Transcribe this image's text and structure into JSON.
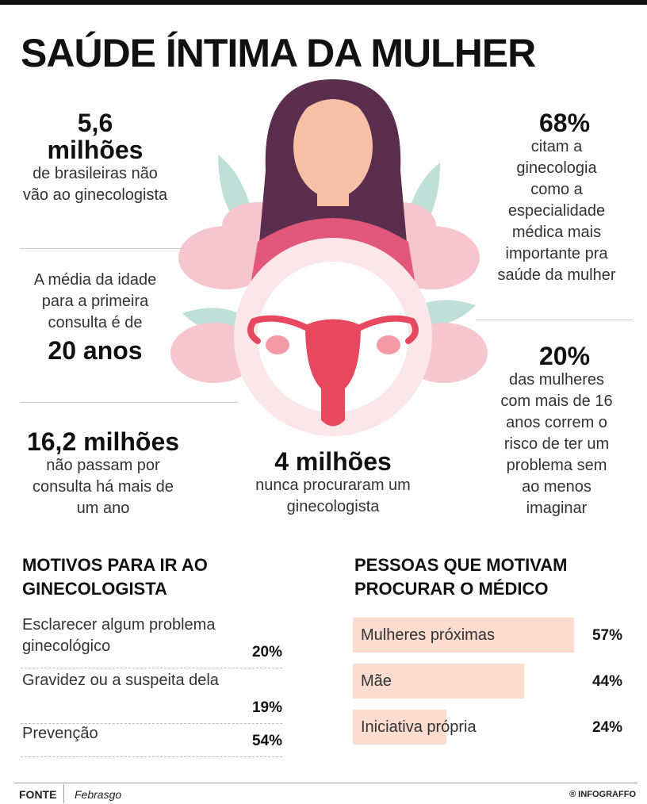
{
  "header": {
    "title": "SAÚDE ÍNTIMA DA MULHER"
  },
  "stats": [
    {
      "value": "5,6",
      "unit": "milhões",
      "text": "de brasileiras não vão ao ginecologista"
    },
    {
      "text": "A média da idade para a primeira consulta é de",
      "value": "20 anos"
    },
    {
      "value": "16,2 milhões",
      "text": "não passam por consulta há mais de um ano"
    },
    {
      "value": "4 milhões",
      "text": "nunca procuraram um ginecologista"
    },
    {
      "value": "68%",
      "text": "citam a ginecologia como a especialidade médica mais importante pra saúde da mulher"
    },
    {
      "value": "20%",
      "text": "das mulheres com mais de 16 anos correm o risco de ter um problema sem ao menos imaginar"
    }
  ],
  "reasons": {
    "title": "MOTIVOS PARA IR AO GINECOLOGISTA",
    "items": [
      {
        "label": "Esclarecer algum problema ginecológico",
        "value": "20%"
      },
      {
        "label": "Gravidez ou a suspeita dela",
        "value": "19%"
      },
      {
        "label": "Prevenção",
        "value": "54%"
      }
    ]
  },
  "people": {
    "title": "PESSOAS QUE MOTIVAM PROCURAR O MÉDICO",
    "color": "#fbdccf",
    "items": [
      {
        "label": "Mulheres próximas",
        "value": 57,
        "value_label": "57%"
      },
      {
        "label": "Mãe",
        "value": 44,
        "value_label": "44%"
      },
      {
        "label": "Iniciativa própria",
        "value": 24,
        "value_label": "24%"
      }
    ]
  },
  "footer": {
    "source_label": "FONTE",
    "source": "Febrasgo",
    "credit": "® INFOGRAFFO"
  }
}
